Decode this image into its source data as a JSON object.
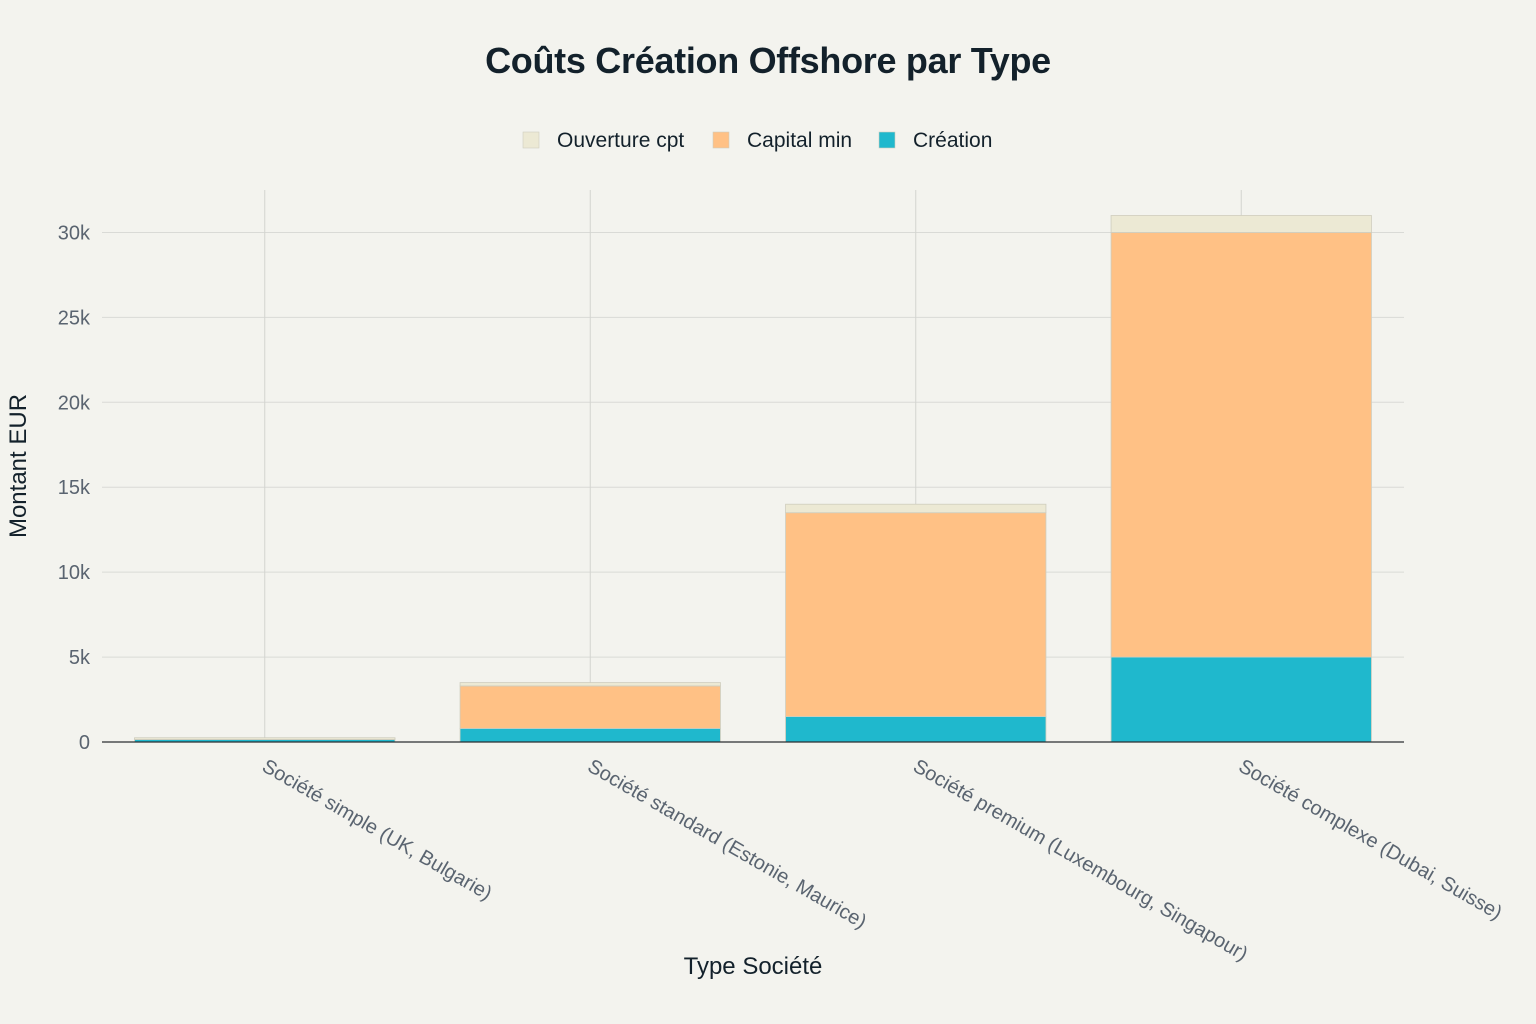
{
  "chart_data": {
    "type": "bar",
    "stacked": true,
    "title": "Coûts Création Offshore par Type",
    "xlabel": "Type Société",
    "ylabel": "Montant EUR",
    "categories": [
      "Société simple (UK, Bulgarie)",
      "Société standard (Estonie, Maurice)",
      "Société premium (Luxembourg, Singapour)",
      "Société complexe (Dubai, Suisse)"
    ],
    "series": [
      {
        "name": "Création",
        "color": "#1fb8cd",
        "values": [
          150,
          800,
          1500,
          5000
        ]
      },
      {
        "name": "Capital min",
        "color": "#ffc185",
        "values": [
          1,
          2500,
          12000,
          25000
        ]
      },
      {
        "name": "Ouverture cpt",
        "color": "#ece9d4",
        "values": [
          100,
          200,
          500,
          1000
        ]
      }
    ],
    "legend_order": [
      "Ouverture cpt",
      "Capital min",
      "Création"
    ],
    "legend_position": "top-center",
    "ylim": [
      0,
      32500
    ],
    "yticks": [
      0,
      5000,
      10000,
      15000,
      20000,
      25000,
      30000
    ],
    "ytick_labels": [
      "0",
      "5k",
      "10k",
      "15k",
      "20k",
      "25k",
      "30k"
    ],
    "grid": true,
    "background": "#f3f3ee"
  }
}
